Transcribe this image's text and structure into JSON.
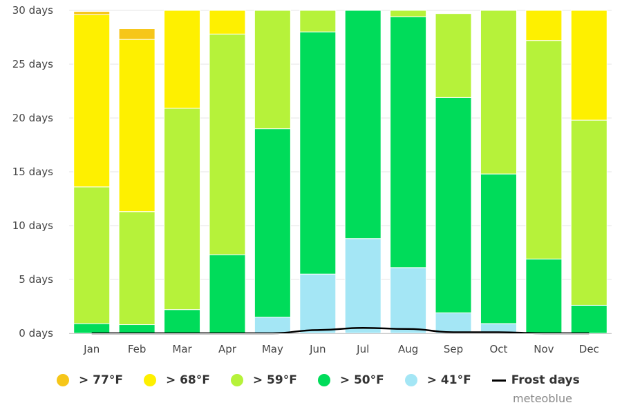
{
  "chart_data": {
    "type": "bar",
    "stacked": true,
    "categories": [
      "Jan",
      "Feb",
      "Mar",
      "Apr",
      "May",
      "Jun",
      "Jul",
      "Aug",
      "Sep",
      "Oct",
      "Nov",
      "Dec"
    ],
    "y_unit_suffix": " days",
    "ylim": [
      0,
      30
    ],
    "yticks": [
      0,
      5,
      10,
      15,
      20,
      25,
      30
    ],
    "grid": true,
    "legend_position": "bottom",
    "series": [
      {
        "name": "> 41°F",
        "color": "#a4e6f5",
        "values": [
          0,
          0,
          0,
          0,
          1.5,
          5.5,
          8.8,
          6.1,
          1.9,
          0.9,
          0,
          0
        ]
      },
      {
        "name": "> 50°F",
        "color": "#00dc5a",
        "values": [
          0.9,
          0.8,
          2.2,
          7.3,
          17.5,
          22.5,
          21.2,
          23.3,
          20.0,
          13.9,
          6.9,
          2.6
        ]
      },
      {
        "name": "> 59°F",
        "color": "#b6f23a",
        "values": [
          12.7,
          10.5,
          18.7,
          20.5,
          11.0,
          2.0,
          0,
          0.6,
          7.8,
          15.2,
          20.3,
          17.2
        ]
      },
      {
        "name": "> 68°F",
        "color": "#fef000",
        "values": [
          16.0,
          16.0,
          9.1,
          2.2,
          0,
          0,
          0,
          0,
          0,
          0,
          2.8,
          10.2
        ]
      },
      {
        "name": "> 77°F",
        "color": "#f6c619",
        "values": [
          0.3,
          1.0,
          0,
          0,
          0,
          0,
          0,
          0,
          0,
          0,
          0,
          0
        ]
      }
    ],
    "line_series": {
      "name": "Frost days",
      "color": "#000000",
      "values": [
        0,
        0,
        0,
        0,
        0,
        0.3,
        0.5,
        0.4,
        0.1,
        0.1,
        0,
        0
      ]
    }
  },
  "legend": [
    {
      "label": "> 77°F",
      "color": "#f6c619",
      "kind": "dot"
    },
    {
      "label": "> 68°F",
      "color": "#fef000",
      "kind": "dot"
    },
    {
      "label": "> 59°F",
      "color": "#b6f23a",
      "kind": "dot"
    },
    {
      "label": "> 50°F",
      "color": "#00dc5a",
      "kind": "dot"
    },
    {
      "label": "> 41°F",
      "color": "#a4e6f5",
      "kind": "dot"
    },
    {
      "label": "Frost days",
      "color": "#000000",
      "kind": "line"
    }
  ],
  "credit": "meteoblue"
}
